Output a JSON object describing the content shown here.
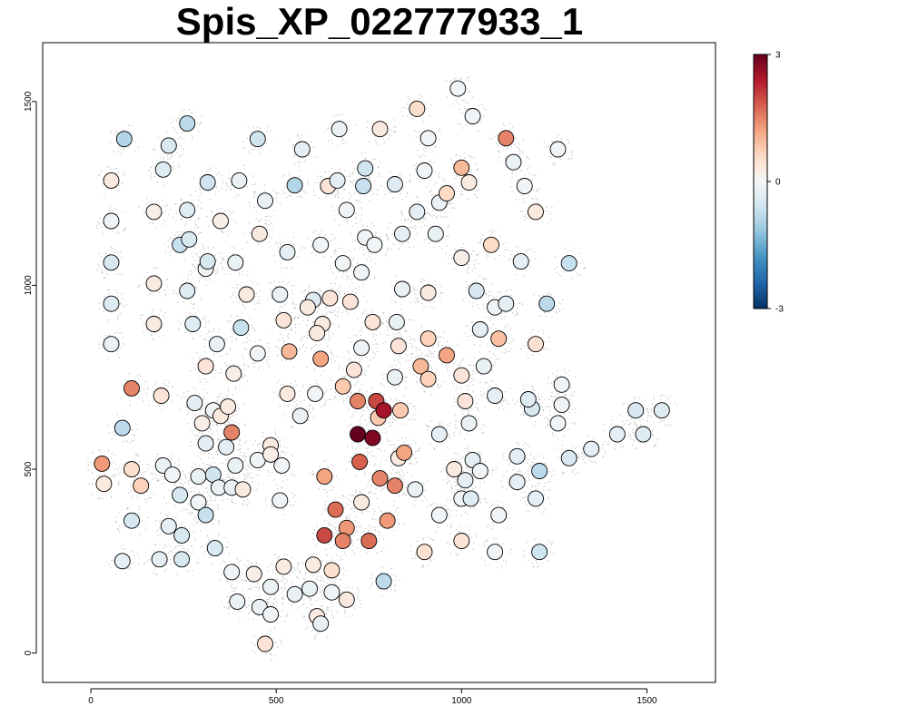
{
  "chart_data": {
    "type": "scatter",
    "title": "Spis_XP_022777933_1",
    "xlabel": "",
    "ylabel": "",
    "xlim": [
      -130,
      1685
    ],
    "ylim": [
      -80,
      1660
    ],
    "x_ticks": [
      "0",
      "500",
      "1000",
      "1500"
    ],
    "y_ticks": [
      "0",
      "500",
      "1000",
      "1500"
    ],
    "grid": false,
    "background_points": "dense light grey tissue-coordinate points",
    "colorbar": {
      "min": -3,
      "max": 3,
      "tick_labels": [
        "3",
        "0",
        "-3"
      ],
      "colors": [
        "#053061",
        "#2166ac",
        "#4393c3",
        "#92c5de",
        "#d1e5f0",
        "#f7f7f7",
        "#fddbc7",
        "#f4a582",
        "#d6604d",
        "#b2182b",
        "#67001f"
      ],
      "position": "right"
    },
    "points": [
      [
        90,
        1398,
        -0.9
      ],
      [
        260,
        1440,
        -0.8
      ],
      [
        450,
        1398,
        -0.6
      ],
      [
        570,
        1370,
        -0.3
      ],
      [
        670,
        1425,
        -0.2
      ],
      [
        780,
        1425,
        0.3
      ],
      [
        880,
        1480,
        0.5
      ],
      [
        990,
        1535,
        -0.1
      ],
      [
        1030,
        1460,
        -0.1
      ],
      [
        1120,
        1400,
        1.5
      ],
      [
        1260,
        1370,
        -0.1
      ],
      [
        210,
        1380,
        -0.5
      ],
      [
        195,
        1315,
        -0.4
      ],
      [
        55,
        1285,
        0.3
      ],
      [
        315,
        1280,
        -0.6
      ],
      [
        400,
        1285,
        -0.2
      ],
      [
        550,
        1272,
        -0.9
      ],
      [
        640,
        1270,
        0.4
      ],
      [
        735,
        1270,
        -0.7
      ],
      [
        740,
        1318,
        -0.6
      ],
      [
        820,
        1275,
        -0.4
      ],
      [
        900,
        1312,
        -0.1
      ],
      [
        910,
        1400,
        -0.1
      ],
      [
        940,
        1225,
        -0.2
      ],
      [
        960,
        1250,
        0.6
      ],
      [
        1000,
        1320,
        1.0
      ],
      [
        1020,
        1280,
        0.3
      ],
      [
        1140,
        1335,
        -0.2
      ],
      [
        1170,
        1270,
        -0.1
      ],
      [
        1200,
        1200,
        0.3
      ],
      [
        55,
        1175,
        -0.1
      ],
      [
        170,
        1200,
        0.2
      ],
      [
        260,
        1205,
        -0.4
      ],
      [
        350,
        1175,
        0.2
      ],
      [
        470,
        1230,
        -0.2
      ],
      [
        665,
        1285,
        -0.3
      ],
      [
        690,
        1205,
        -0.1
      ],
      [
        740,
        1130,
        -0.1
      ],
      [
        765,
        1110,
        -0.1
      ],
      [
        840,
        1140,
        -0.3
      ],
      [
        880,
        1200,
        -0.3
      ],
      [
        930,
        1140,
        -0.2
      ],
      [
        1000,
        1075,
        0.2
      ],
      [
        1080,
        1110,
        0.6
      ],
      [
        1160,
        1065,
        -0.3
      ],
      [
        1290,
        1060,
        -0.7
      ],
      [
        55,
        1062,
        -0.5
      ],
      [
        240,
        1110,
        -0.7
      ],
      [
        265,
        1125,
        -0.5
      ],
      [
        310,
        1045,
        -0.1
      ],
      [
        315,
        1065,
        -0.5
      ],
      [
        390,
        1062,
        -0.2
      ],
      [
        455,
        1140,
        0.3
      ],
      [
        530,
        1090,
        -0.3
      ],
      [
        620,
        1110,
        -0.1
      ],
      [
        680,
        1060,
        -0.1
      ],
      [
        730,
        1035,
        -0.1
      ],
      [
        55,
        950,
        -0.4
      ],
      [
        170,
        1005,
        0.3
      ],
      [
        260,
        985,
        -0.4
      ],
      [
        420,
        975,
        0.3
      ],
      [
        510,
        975,
        -0.2
      ],
      [
        600,
        960,
        -0.4
      ],
      [
        645,
        965,
        0.4
      ],
      [
        700,
        955,
        0.4
      ],
      [
        840,
        990,
        -0.2
      ],
      [
        910,
        980,
        0.3
      ],
      [
        1040,
        985,
        -0.5
      ],
      [
        1090,
        940,
        -0.1
      ],
      [
        1120,
        950,
        -0.3
      ],
      [
        1230,
        950,
        -0.8
      ],
      [
        55,
        840,
        -0.2
      ],
      [
        170,
        895,
        0.3
      ],
      [
        275,
        895,
        -0.4
      ],
      [
        340,
        840,
        -0.2
      ],
      [
        405,
        885,
        -0.7
      ],
      [
        450,
        815,
        -0.1
      ],
      [
        520,
        905,
        0.4
      ],
      [
        585,
        940,
        0.3
      ],
      [
        625,
        895,
        0.3
      ],
      [
        610,
        870,
        0.3
      ],
      [
        730,
        830,
        -0.1
      ],
      [
        760,
        900,
        0.4
      ],
      [
        825,
        900,
        -0.2
      ],
      [
        830,
        835,
        0.4
      ],
      [
        910,
        855,
        0.7
      ],
      [
        1050,
        880,
        -0.3
      ],
      [
        1100,
        855,
        0.9
      ],
      [
        1200,
        840,
        0.5
      ],
      [
        310,
        780,
        0.4
      ],
      [
        385,
        760,
        0.2
      ],
      [
        535,
        820,
        1.0
      ],
      [
        620,
        800,
        1.2
      ],
      [
        710,
        770,
        0.4
      ],
      [
        820,
        750,
        -0.2
      ],
      [
        890,
        780,
        1.0
      ],
      [
        910,
        745,
        0.7
      ],
      [
        960,
        810,
        1.2
      ],
      [
        1000,
        755,
        0.4
      ],
      [
        1060,
        780,
        -0.2
      ],
      [
        110,
        720,
        1.5
      ],
      [
        190,
        700,
        0.4
      ],
      [
        280,
        680,
        -0.3
      ],
      [
        330,
        660,
        -0.1
      ],
      [
        350,
        645,
        0.3
      ],
      [
        370,
        670,
        0.3
      ],
      [
        380,
        600,
        1.5
      ],
      [
        300,
        625,
        0.2
      ],
      [
        530,
        705,
        0.3
      ],
      [
        565,
        645,
        -0.2
      ],
      [
        605,
        705,
        -0.1
      ],
      [
        680,
        725,
        0.8
      ],
      [
        720,
        685,
        1.5
      ],
      [
        770,
        685,
        2.0
      ],
      [
        775,
        640,
        0.8
      ],
      [
        790,
        660,
        2.5
      ],
      [
        835,
        660,
        0.8
      ],
      [
        1010,
        685,
        0.4
      ],
      [
        1090,
        700,
        -0.3
      ],
      [
        1190,
        665,
        -0.5
      ],
      [
        1180,
        690,
        -0.4
      ],
      [
        1270,
        730,
        -0.1
      ],
      [
        1270,
        675,
        -0.1
      ],
      [
        1260,
        625,
        -0.1
      ],
      [
        1420,
        595,
        -0.3
      ],
      [
        1470,
        660,
        -0.5
      ],
      [
        1540,
        660,
        -0.4
      ],
      [
        1490,
        595,
        -0.4
      ],
      [
        85,
        612,
        -0.8
      ],
      [
        310,
        570,
        -0.3
      ],
      [
        365,
        560,
        -0.3
      ],
      [
        390,
        510,
        -0.2
      ],
      [
        450,
        525,
        -0.1
      ],
      [
        485,
        565,
        0.3
      ],
      [
        485,
        540,
        0.2
      ],
      [
        515,
        510,
        -0.1
      ],
      [
        720,
        595,
        3.0
      ],
      [
        760,
        585,
        2.8
      ],
      [
        725,
        520,
        1.8
      ],
      [
        780,
        475,
        1.5
      ],
      [
        830,
        530,
        0.3
      ],
      [
        845,
        545,
        1.2
      ],
      [
        940,
        595,
        -0.3
      ],
      [
        1020,
        625,
        -0.2
      ],
      [
        1030,
        525,
        -0.3
      ],
      [
        1050,
        495,
        -0.1
      ],
      [
        1150,
        535,
        -0.3
      ],
      [
        1150,
        465,
        -0.3
      ],
      [
        1210,
        495,
        -0.8
      ],
      [
        1290,
        530,
        -0.5
      ],
      [
        1350,
        555,
        -0.3
      ],
      [
        30,
        515,
        1.3
      ],
      [
        35,
        460,
        0.3
      ],
      [
        110,
        500,
        0.5
      ],
      [
        135,
        455,
        0.7
      ],
      [
        195,
        510,
        -0.2
      ],
      [
        220,
        485,
        -0.1
      ],
      [
        290,
        480,
        -0.2
      ],
      [
        330,
        485,
        -0.6
      ],
      [
        345,
        450,
        -0.2
      ],
      [
        380,
        450,
        -0.2
      ],
      [
        410,
        445,
        0.3
      ],
      [
        510,
        415,
        -0.1
      ],
      [
        630,
        480,
        1.2
      ],
      [
        660,
        390,
        1.7
      ],
      [
        730,
        410,
        0.3
      ],
      [
        820,
        455,
        1.5
      ],
      [
        875,
        445,
        -0.2
      ],
      [
        980,
        500,
        0.3
      ],
      [
        1000,
        420,
        -0.1
      ],
      [
        1010,
        470,
        -0.3
      ],
      [
        1025,
        420,
        -0.4
      ],
      [
        110,
        360,
        -0.5
      ],
      [
        210,
        345,
        -0.3
      ],
      [
        240,
        430,
        -0.5
      ],
      [
        290,
        410,
        -0.1
      ],
      [
        310,
        375,
        -0.7
      ],
      [
        1100,
        375,
        -0.1
      ],
      [
        1200,
        420,
        -0.3
      ],
      [
        940,
        375,
        -0.1
      ],
      [
        800,
        360,
        1.3
      ],
      [
        85,
        250,
        -0.3
      ],
      [
        185,
        255,
        -0.3
      ],
      [
        245,
        255,
        -0.5
      ],
      [
        245,
        320,
        -0.5
      ],
      [
        335,
        285,
        -0.5
      ],
      [
        630,
        320,
        2.0
      ],
      [
        690,
        340,
        1.3
      ],
      [
        680,
        305,
        1.5
      ],
      [
        750,
        305,
        1.7
      ],
      [
        900,
        275,
        0.5
      ],
      [
        1000,
        305,
        0.4
      ],
      [
        1090,
        275,
        -0.1
      ],
      [
        1210,
        275,
        -0.6
      ],
      [
        380,
        220,
        -0.1
      ],
      [
        440,
        215,
        0.2
      ],
      [
        520,
        235,
        0.3
      ],
      [
        600,
        240,
        0.3
      ],
      [
        650,
        225,
        0.5
      ],
      [
        790,
        195,
        -0.8
      ],
      [
        395,
        140,
        -0.2
      ],
      [
        455,
        125,
        -0.2
      ],
      [
        485,
        180,
        -0.2
      ],
      [
        485,
        105,
        -0.1
      ],
      [
        550,
        160,
        -0.2
      ],
      [
        590,
        175,
        -0.2
      ],
      [
        610,
        100,
        0.3
      ],
      [
        620,
        80,
        -0.2
      ],
      [
        650,
        165,
        -0.1
      ],
      [
        690,
        145,
        0.3
      ],
      [
        470,
        25,
        0.4
      ]
    ]
  }
}
